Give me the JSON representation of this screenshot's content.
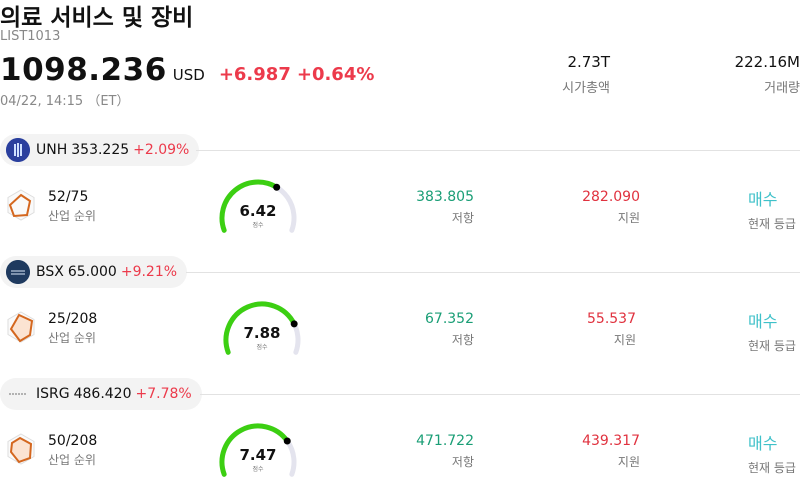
{
  "header": {
    "title": "의료 서비스 및 장비",
    "code": "LIST1013",
    "price": "1098.236",
    "currency": "USD",
    "change": "+6.987",
    "change_pct": "+0.64%",
    "timestamp": "04/22, 14:15 （ET）",
    "market_cap": {
      "value": "2.73T",
      "label": "시가총액"
    },
    "volume": {
      "value": "222.16M",
      "label": "거래량"
    }
  },
  "colors": {
    "up": "#ec3a4b",
    "resistance": "#1a9e76",
    "support": "#e0323f",
    "rating": "#3fc1c9",
    "gauge_fill": "#3ccf12",
    "gauge_track": "#e4e4ee"
  },
  "stocks": [
    {
      "ticker": "UNH",
      "price": "353.225",
      "change_pct": "+2.09%",
      "logo_icon": "unh-logo-icon",
      "rank": "52/75",
      "rank_label": "산업 순위",
      "score": "6.42",
      "score_label": "점수",
      "score_fraction": 0.642,
      "resistance": "383.805",
      "resistance_label": "저항",
      "support": "282.090",
      "support_label": "지원",
      "rating": "매수",
      "rating_label": "현재 등급"
    },
    {
      "ticker": "BSX",
      "price": "65.000",
      "change_pct": "+9.21%",
      "logo_icon": "bsx-logo-icon",
      "rank": "25/208",
      "rank_label": "산업 순위",
      "score": "7.88",
      "score_label": "점수",
      "score_fraction": 0.788,
      "resistance": "67.352",
      "resistance_label": "저항",
      "support": "55.537",
      "support_label": "지원",
      "rating": "매수",
      "rating_label": "현재 등급"
    },
    {
      "ticker": "ISRG",
      "price": "486.420",
      "change_pct": "+7.78%",
      "logo_icon": "isrg-logo-icon",
      "rank": "50/208",
      "rank_label": "산업 순위",
      "score": "7.47",
      "score_label": "점수",
      "score_fraction": 0.747,
      "resistance": "471.722",
      "resistance_label": "저항",
      "support": "439.317",
      "support_label": "지원",
      "rating": "매수",
      "rating_label": "현재 등급"
    }
  ]
}
